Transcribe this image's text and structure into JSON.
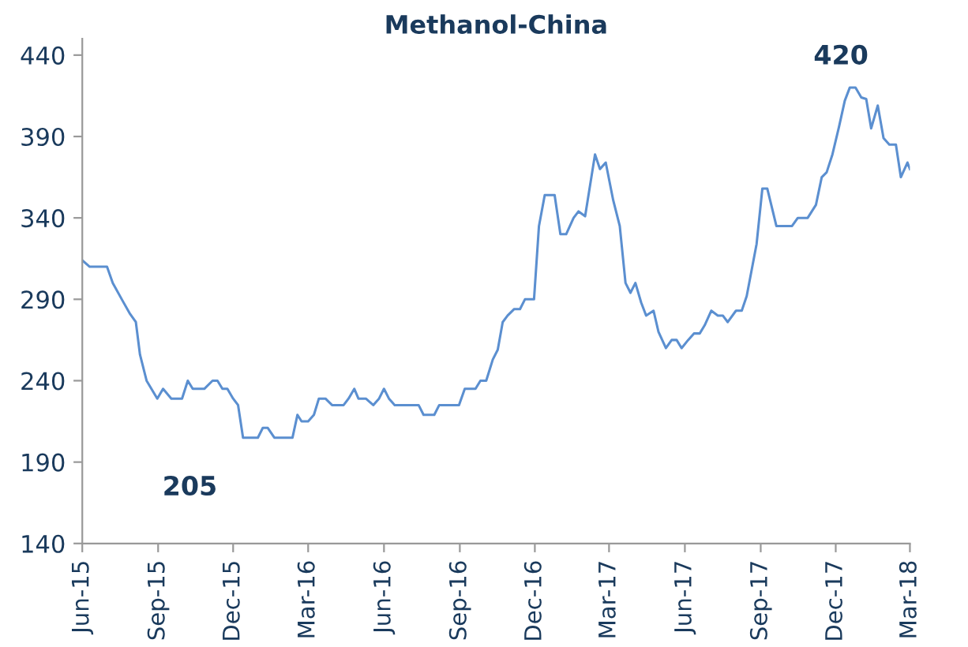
{
  "chart_data": {
    "type": "line",
    "title": "Methanol-China",
    "x": [
      "2015-06-01",
      "2015-06-10",
      "2015-07-01",
      "2015-07-08",
      "2015-07-20",
      "2015-07-29",
      "2015-08-05",
      "2015-08-10",
      "2015-08-18",
      "2015-08-31",
      "2015-09-07",
      "2015-09-17",
      "2015-09-30",
      "2015-10-07",
      "2015-10-13",
      "2015-10-27",
      "2015-11-06",
      "2015-11-12",
      "2015-11-18",
      "2015-11-24",
      "2015-12-01",
      "2015-12-07",
      "2015-12-13",
      "2015-12-23",
      "2015-12-31",
      "2016-01-06",
      "2016-01-12",
      "2016-01-20",
      "2016-02-11",
      "2016-02-17",
      "2016-02-22",
      "2016-03-01",
      "2016-03-08",
      "2016-03-14",
      "2016-03-22",
      "2016-03-30",
      "2016-04-13",
      "2016-04-19",
      "2016-04-26",
      "2016-05-01",
      "2016-05-10",
      "2016-05-19",
      "2016-05-26",
      "2016-06-01",
      "2016-06-07",
      "2016-06-14",
      "2016-07-13",
      "2016-07-19",
      "2016-08-01",
      "2016-08-07",
      "2016-08-31",
      "2016-09-07",
      "2016-09-20",
      "2016-09-26",
      "2016-10-03",
      "2016-10-11",
      "2016-10-17",
      "2016-10-23",
      "2016-10-29",
      "2016-11-06",
      "2016-11-13",
      "2016-11-19",
      "2016-11-30",
      "2016-12-06",
      "2016-12-13",
      "2016-12-25",
      "2017-01-01",
      "2017-01-08",
      "2017-01-17",
      "2017-01-23",
      "2017-01-31",
      "2017-02-12",
      "2017-02-18",
      "2017-02-25",
      "2017-03-06",
      "2017-03-14",
      "2017-03-21",
      "2017-03-27",
      "2017-04-02",
      "2017-04-09",
      "2017-04-15",
      "2017-04-24",
      "2017-04-30",
      "2017-05-09",
      "2017-05-16",
      "2017-05-22",
      "2017-05-28",
      "2017-06-05",
      "2017-06-12",
      "2017-06-19",
      "2017-06-25",
      "2017-07-03",
      "2017-07-11",
      "2017-07-17",
      "2017-07-23",
      "2017-08-02",
      "2017-08-09",
      "2017-08-15",
      "2017-08-21",
      "2017-08-27",
      "2017-09-03",
      "2017-09-09",
      "2017-09-20",
      "2017-10-09",
      "2017-10-16",
      "2017-10-28",
      "2017-11-07",
      "2017-11-14",
      "2017-11-20",
      "2017-11-27",
      "2017-12-05",
      "2017-12-12",
      "2017-12-18",
      "2017-12-25",
      "2018-01-01",
      "2018-01-07",
      "2018-01-13",
      "2018-01-21",
      "2018-01-28",
      "2018-02-04",
      "2018-02-12",
      "2018-02-18",
      "2018-02-26",
      "2018-03-01"
    ],
    "series": [
      {
        "color": "#5b8fd0",
        "values": [
          314,
          310,
          310,
          300,
          289,
          281,
          276,
          256,
          240,
          229,
          235,
          229,
          229,
          240,
          235,
          235,
          240,
          240,
          235,
          235,
          229,
          225,
          205,
          205,
          205,
          211,
          211,
          205,
          205,
          219,
          215,
          215,
          219,
          229,
          229,
          225,
          225,
          229,
          235,
          229,
          229,
          225,
          229,
          235,
          229,
          225,
          225,
          219,
          219,
          225,
          225,
          235,
          235,
          240,
          240,
          253,
          259,
          276,
          280,
          284,
          284,
          290,
          290,
          335,
          354,
          354,
          330,
          330,
          340,
          344,
          341,
          379,
          370,
          374,
          351,
          335,
          300,
          294,
          300,
          288,
          280,
          283,
          270,
          260,
          265,
          265,
          260,
          265,
          269,
          269,
          274,
          283,
          280,
          280,
          276,
          283,
          283,
          292,
          308,
          324,
          358,
          358,
          335,
          335,
          340,
          340,
          348,
          365,
          368,
          379,
          396,
          412,
          420,
          420,
          414,
          413,
          395,
          409,
          389,
          385,
          385,
          365,
          374,
          370
        ]
      }
    ],
    "xlim": [
      "2015-06-01",
      "2018-03-01"
    ],
    "xticks": [
      {
        "value": "2015-06-01",
        "label": "Jun-15"
      },
      {
        "value": "2015-09-01",
        "label": "Sep-15"
      },
      {
        "value": "2015-12-01",
        "label": "Dec-15"
      },
      {
        "value": "2016-03-01",
        "label": "Mar-16"
      },
      {
        "value": "2016-06-01",
        "label": "Jun-16"
      },
      {
        "value": "2016-09-01",
        "label": "Sep-16"
      },
      {
        "value": "2016-12-01",
        "label": "Dec-16"
      },
      {
        "value": "2017-03-01",
        "label": "Mar-17"
      },
      {
        "value": "2017-06-01",
        "label": "Jun-17"
      },
      {
        "value": "2017-09-01",
        "label": "Sep-17"
      },
      {
        "value": "2017-12-01",
        "label": "Dec-17"
      },
      {
        "value": "2018-03-01",
        "label": "Mar-18"
      }
    ],
    "ylim": [
      140,
      450
    ],
    "yticks": [
      140,
      190,
      240,
      290,
      340,
      390,
      440
    ],
    "annotations": [
      "205",
      {
        "text": "420",
        "x": "2017-12-18",
        "y": 420
      }
    ],
    "grid": false,
    "marker": "none",
    "line_style": "solid"
  }
}
